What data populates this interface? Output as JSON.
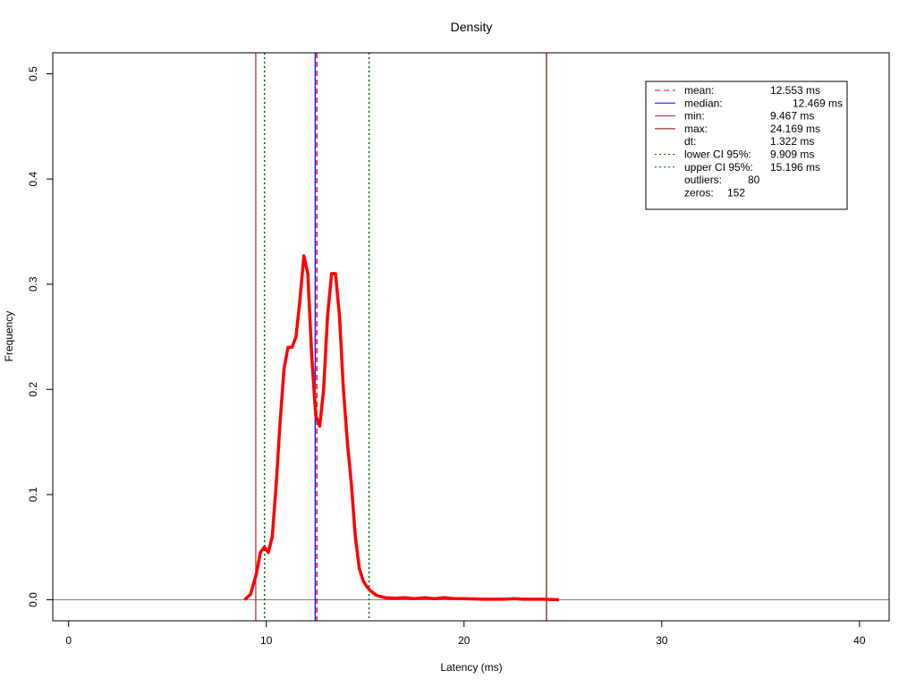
{
  "chart_data": {
    "type": "line",
    "title": "Density",
    "xlabel": "Latency (ms)",
    "ylabel": "Frequency",
    "xlim": [
      -0.8,
      41.5
    ],
    "ylim": [
      -0.02,
      0.52
    ],
    "x_ticks": [
      0,
      10,
      20,
      30,
      40
    ],
    "x_tick_labels": [
      "0",
      "10",
      "20",
      "30",
      "40"
    ],
    "y_ticks": [
      0.0,
      0.1,
      0.2,
      0.3,
      0.4,
      0.5
    ],
    "y_tick_labels": [
      "0.0",
      "0.1",
      "0.2",
      "0.3",
      "0.4",
      "0.5"
    ],
    "grid": false,
    "legend_position": "top-right",
    "series": [
      {
        "color": "#ff0000",
        "x": [
          8.9,
          9.2,
          9.5,
          9.7,
          9.9,
          10.1,
          10.3,
          10.5,
          10.7,
          10.9,
          11.1,
          11.3,
          11.5,
          11.7,
          11.9,
          12.1,
          12.3,
          12.5,
          12.7,
          12.9,
          13.1,
          13.3,
          13.5,
          13.7,
          13.9,
          14.1,
          14.3,
          14.5,
          14.7,
          14.9,
          15.1,
          15.3,
          15.6,
          16.0,
          16.5,
          17.0,
          17.5,
          18.0,
          18.5,
          19.0,
          19.5,
          20.0,
          21.0,
          22.0,
          22.5,
          23.0,
          24.0,
          24.8
        ],
        "y": [
          0.0,
          0.005,
          0.025,
          0.045,
          0.05,
          0.045,
          0.06,
          0.11,
          0.17,
          0.22,
          0.24,
          0.24,
          0.25,
          0.285,
          0.327,
          0.31,
          0.23,
          0.175,
          0.165,
          0.2,
          0.27,
          0.31,
          0.31,
          0.27,
          0.2,
          0.15,
          0.11,
          0.06,
          0.03,
          0.018,
          0.012,
          0.008,
          0.004,
          0.002,
          0.0015,
          0.002,
          0.001,
          0.002,
          0.001,
          0.002,
          0.001,
          0.001,
          0.0005,
          0.0005,
          0.001,
          0.0005,
          0.0005,
          0.0
        ]
      }
    ],
    "vlines": [
      {
        "label": "mean:",
        "x": 12.553,
        "value": "12.553 ms",
        "color": "#ff0000",
        "style": "dashed"
      },
      {
        "label": "median:",
        "x": 12.469,
        "value": "12.469 ms",
        "color": "#0000ff",
        "style": "solid"
      },
      {
        "label": "min:",
        "x": 9.467,
        "value": "9.467 ms",
        "color": "#b22222",
        "style": "solid"
      },
      {
        "label": "max:",
        "x": 24.169,
        "value": "24.169 ms",
        "color": "#8b0000",
        "style": "solid"
      },
      {
        "label": "lower CI 95%:",
        "x": 9.909,
        "value": "9.909 ms",
        "color": "#006400",
        "style": "dotted"
      },
      {
        "label": "upper CI 95%:",
        "x": 15.196,
        "value": "15.196 ms",
        "color": "#006400",
        "style": "dotted"
      }
    ],
    "legend": [
      {
        "label": "mean:",
        "value": "12.553 ms",
        "color": "#ff0000",
        "style": "dashed"
      },
      {
        "label": "median:",
        "value": "12.469 ms",
        "color": "#0000ff",
        "style": "solid"
      },
      {
        "label": "min:",
        "value": "9.467 ms",
        "color": "#b22222",
        "style": "solid"
      },
      {
        "label": "max:",
        "value": "24.169 ms",
        "color": "#8b0000",
        "style": "solid"
      },
      {
        "label": "dt:",
        "value": "1.322 ms",
        "color": "",
        "style": "none"
      },
      {
        "label": "lower CI 95%:",
        "value": "9.909 ms",
        "color": "#006400",
        "style": "dotted"
      },
      {
        "label": "upper CI 95%:",
        "value": "15.196 ms",
        "color": "#006400",
        "style": "dotted"
      },
      {
        "label": "outliers:",
        "value": "80",
        "color": "",
        "style": "none"
      },
      {
        "label": "zeros:",
        "value": "152",
        "color": "",
        "style": "none"
      }
    ],
    "hline": {
      "y": 0.0,
      "color": "#808080"
    }
  }
}
